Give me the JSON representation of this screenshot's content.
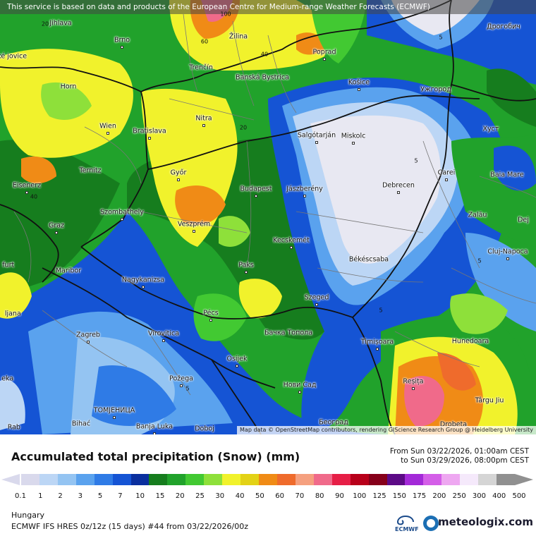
{
  "banner": "This service is based on data and products of the European Centre for Medium-range Weather Forecasts (ECMWF)",
  "attribution": "Map data © OpenStreetMap contributors, rendering GIScience Research Group @ Heidelberg University",
  "title": "Accumulated total precipitation (Snow) (mm)",
  "from_date": "From Sun 03/22/2026, 01:00am CEST",
  "to_date": "to Sun 03/29/2026, 08:00pm CEST",
  "region": "Hungary",
  "model_run": "ECMWF IFS HRES 0z/12z (15 days) #44 from  03/22/2026/00z",
  "ecmwf_label": "ECMWF",
  "brand": "meteologix.com",
  "cities": [
    {
      "name": "Jihlava"
    },
    {
      "name": "Brno"
    },
    {
      "name": "Žilina"
    },
    {
      "name": "Poprad"
    },
    {
      "name": "Дрогобич"
    },
    {
      "name": "Trenčín"
    },
    {
      "name": "Banská Bystrica"
    },
    {
      "name": "Košice"
    },
    {
      "name": "Ужгород"
    },
    {
      "name": "Horn"
    },
    {
      "name": "Nitra"
    },
    {
      "name": "Wien"
    },
    {
      "name": "Bratislava"
    },
    {
      "name": "Salgótarján"
    },
    {
      "name": "Miskolc"
    },
    {
      "name": "Хуст"
    },
    {
      "name": "Ternitz"
    },
    {
      "name": "Győr"
    },
    {
      "name": "Carei"
    },
    {
      "name": "Eisenerz"
    },
    {
      "name": "Budapest"
    },
    {
      "name": "Jászberény"
    },
    {
      "name": "Debrecen"
    },
    {
      "name": "Baia Mare"
    },
    {
      "name": "Szombathely"
    },
    {
      "name": "Zalău"
    },
    {
      "name": "Graz"
    },
    {
      "name": "Veszprém"
    },
    {
      "name": "Dej"
    },
    {
      "name": "Kecskemét"
    },
    {
      "name": "Cluj-Napoca"
    },
    {
      "name": "Maribor"
    },
    {
      "name": "Paks"
    },
    {
      "name": "Békéscsaba"
    },
    {
      "name": "Nagykanizsa"
    },
    {
      "name": "Szeged"
    },
    {
      "name": "Pécs"
    },
    {
      "name": "Zagreb"
    },
    {
      "name": "Virovitica"
    },
    {
      "name": "Бачка Топола"
    },
    {
      "name": "Timișoara"
    },
    {
      "name": "Hunedoara"
    },
    {
      "name": "Osijek"
    },
    {
      "name": "Požega"
    },
    {
      "name": "Reșița"
    },
    {
      "name": "Нови Сад"
    },
    {
      "name": "Târgu Jiu"
    },
    {
      "name": "ТОМЈЕНИЦА"
    },
    {
      "name": "Bihać"
    },
    {
      "name": "Banja Luka"
    },
    {
      "name": "Doboj"
    },
    {
      "name": "Београд"
    },
    {
      "name": "Drobeta"
    }
  ],
  "edge_labels": [
    {
      "text": "ské jovice"
    },
    {
      "text": "furt"
    },
    {
      "text": "ljana"
    },
    {
      "text": "eka"
    },
    {
      "text": "Rab"
    }
  ],
  "contour_labels": [
    "20",
    "60",
    "40",
    "20",
    "40",
    "5",
    "5",
    "5",
    "5",
    "5",
    "100"
  ],
  "legend": {
    "ticks": [
      "0.1",
      "1",
      "2",
      "3",
      "5",
      "7",
      "10",
      "15",
      "20",
      "25",
      "30",
      "40",
      "50",
      "60",
      "70",
      "80",
      "90",
      "100",
      "125",
      "150",
      "175",
      "200",
      "250",
      "300",
      "400",
      "500"
    ],
    "colors": [
      "#d9d9ec",
      "#bcd6f5",
      "#94c4f2",
      "#5aa2ee",
      "#2f7be6",
      "#1554d4",
      "#0a2f9e",
      "#167d1e",
      "#21a22b",
      "#42c932",
      "#8ee03a",
      "#f1f22c",
      "#e3d216",
      "#f08b16",
      "#ef6b2c",
      "#f5a07f",
      "#f06a8a",
      "#e61e46",
      "#b8001a",
      "#86001a",
      "#5c0a86",
      "#a329d8",
      "#d45ee8",
      "#eea7f1",
      "#f5e9fb",
      "#d5d5d5",
      "#909090"
    ]
  }
}
